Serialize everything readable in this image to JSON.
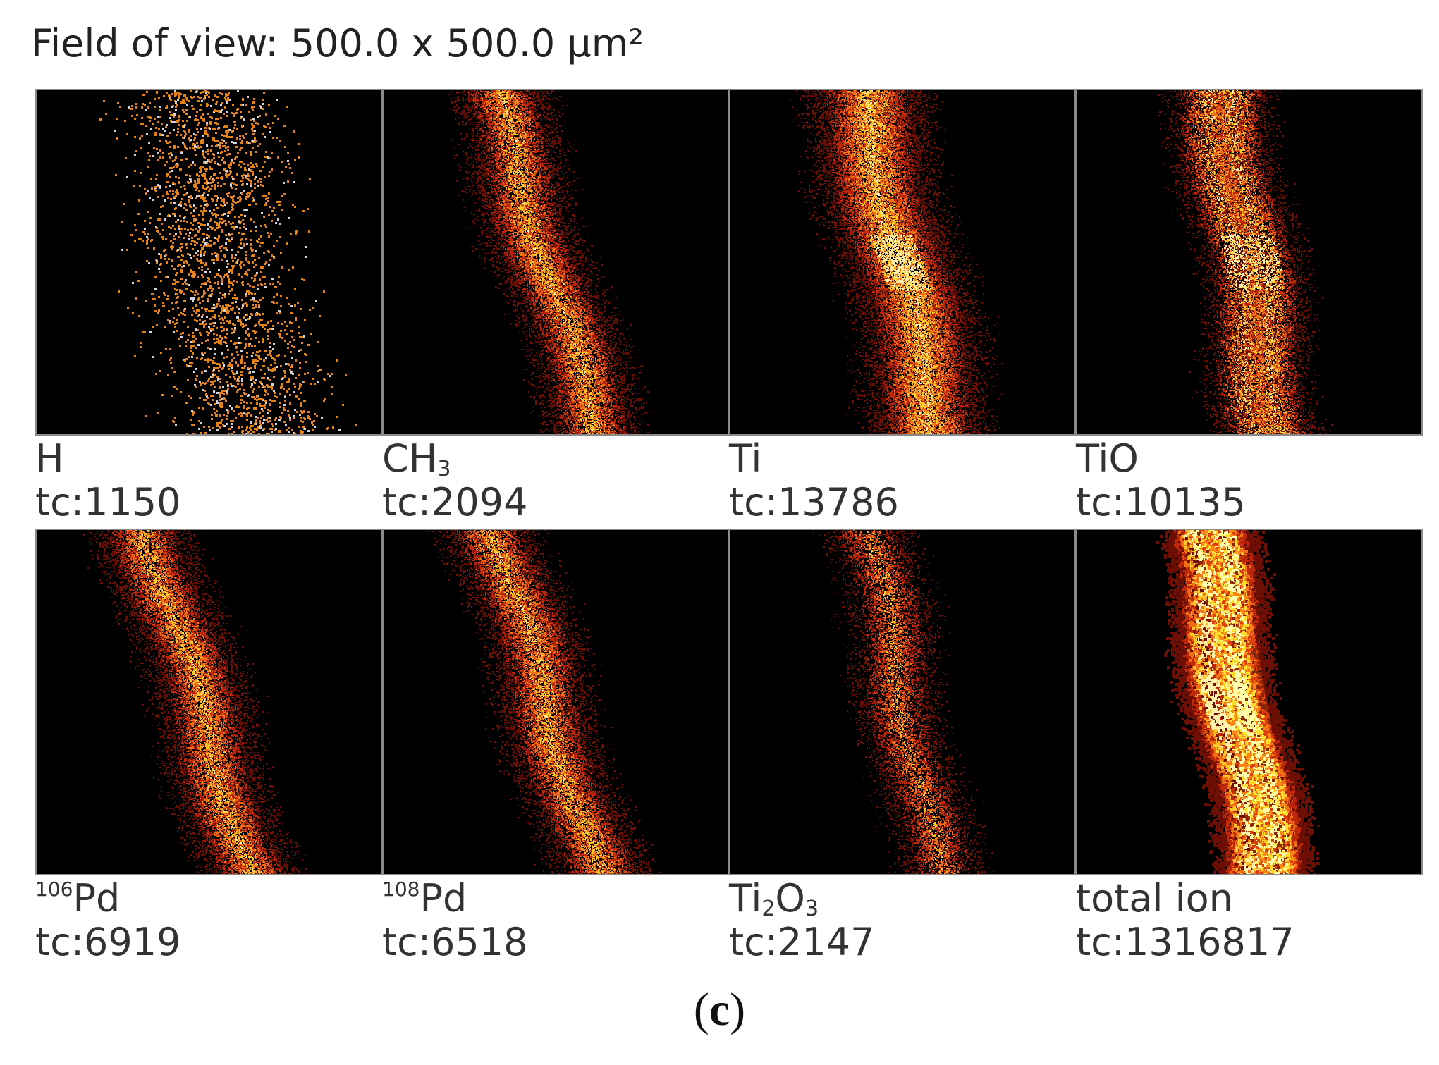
{
  "field_of_view": "Field of view: 500.0 x 500.0 µm²",
  "panel_label_open": "(",
  "panel_label_letter": "c",
  "panel_label_close": ")",
  "tiles": [
    {
      "ion_prefix_sup": "",
      "ion_main": "H",
      "ion_sub_parts": [],
      "tc": "tc:1150",
      "style": "sparse"
    },
    {
      "ion_prefix_sup": "",
      "ion_main": "CH",
      "ion_sub_parts": [
        "3"
      ],
      "tc": "tc:2094",
      "style": "band"
    },
    {
      "ion_prefix_sup": "",
      "ion_main": "Ti",
      "ion_sub_parts": [],
      "tc": "tc:13786",
      "style": "wide"
    },
    {
      "ion_prefix_sup": "",
      "ion_main": "TiO",
      "ion_sub_parts": [],
      "tc": "tc:10135",
      "style": "double"
    },
    {
      "ion_prefix_sup": "106",
      "ion_main": "Pd",
      "ion_sub_parts": [],
      "tc": "tc:6919",
      "style": "band"
    },
    {
      "ion_prefix_sup": "108",
      "ion_main": "Pd",
      "ion_sub_parts": [],
      "tc": "tc:6518",
      "style": "band"
    },
    {
      "ion_prefix_sup": "",
      "ion_main": "Ti",
      "ion_sub_parts": [
        "2",
        "O",
        "3"
      ],
      "tc": "tc:2147",
      "style": "dim"
    },
    {
      "ion_prefix_sup": "",
      "ion_main": "total ion",
      "ion_sub_parts": [],
      "tc": "tc:1316817",
      "style": "bright"
    }
  ]
}
